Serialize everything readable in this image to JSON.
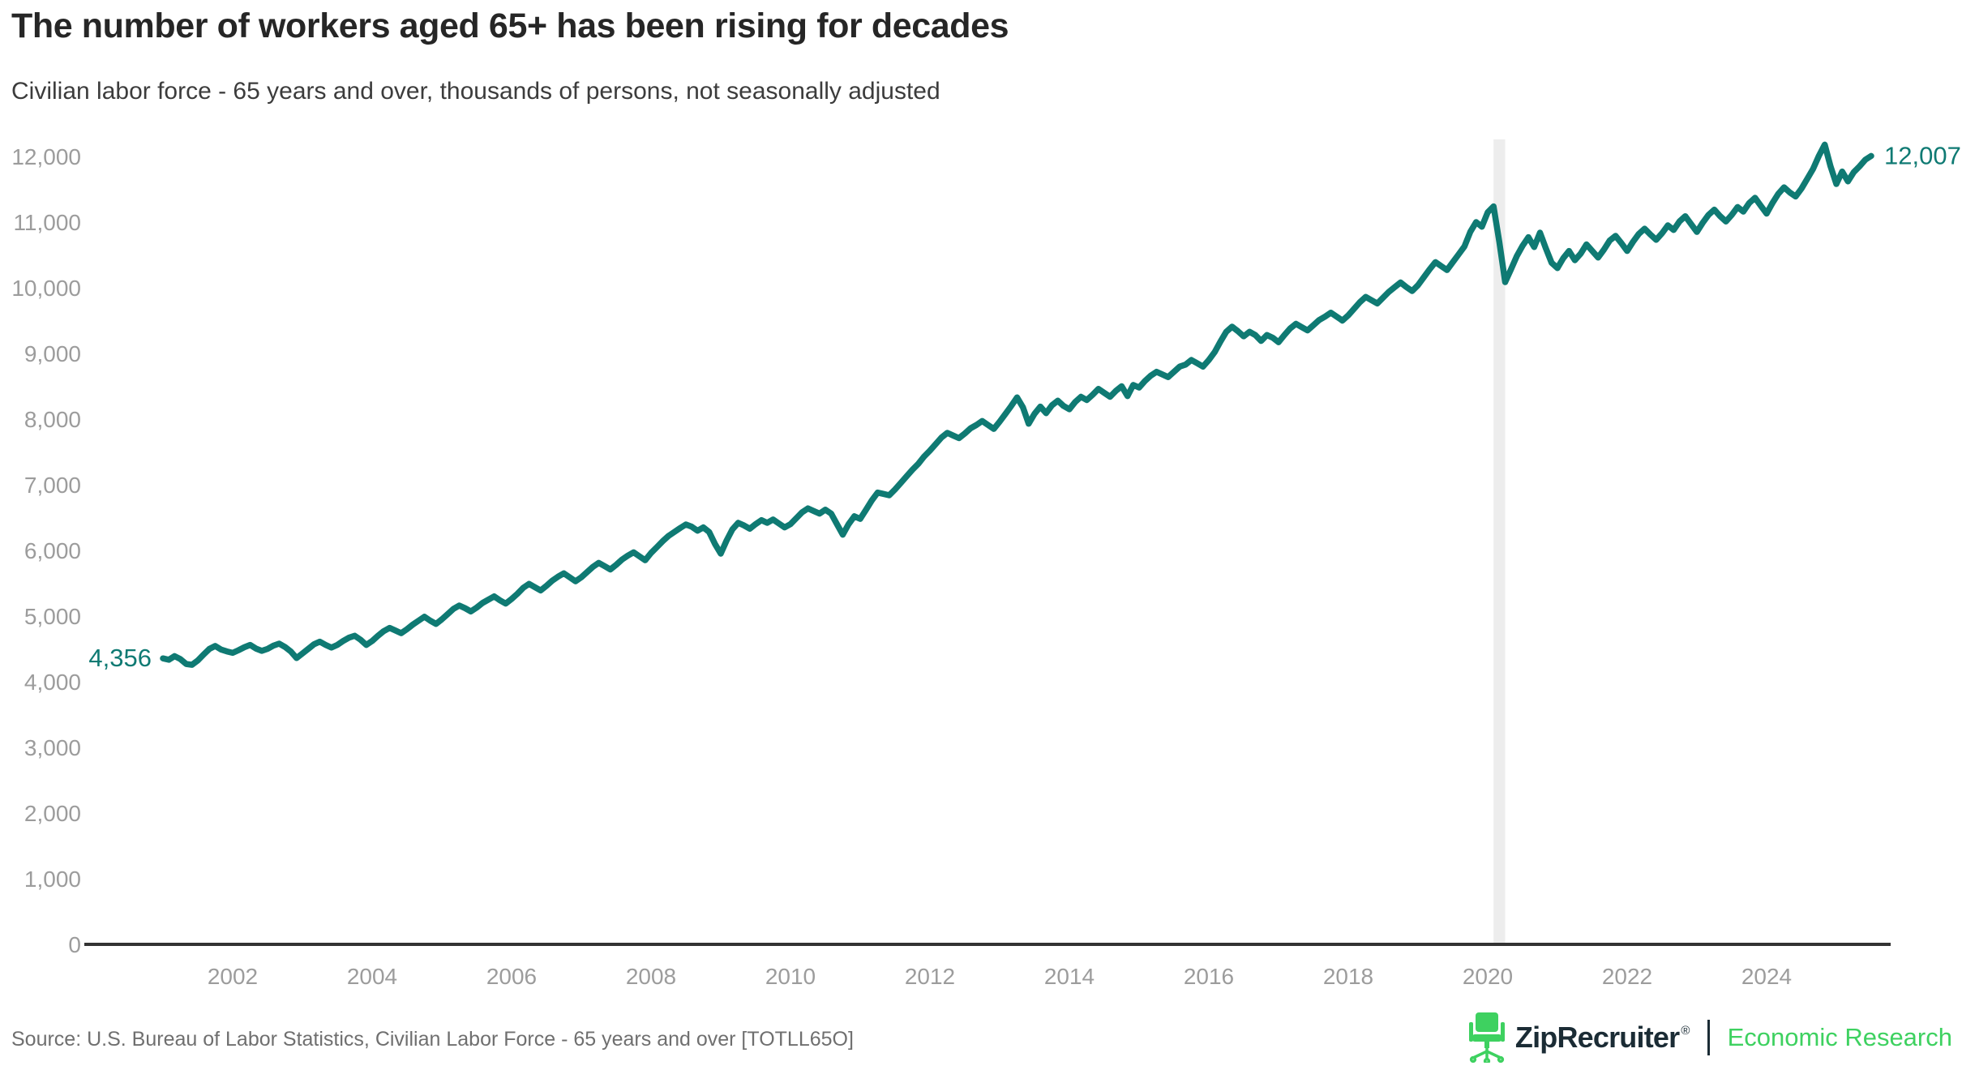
{
  "header": {
    "title": "The number of workers aged 65+ has been rising for decades",
    "subtitle": "Civilian labor force - 65 years and over, thousands of persons, not seasonally adjusted"
  },
  "footer": {
    "source": "Source: U.S. Bureau of Labor Statistics, Civilian Labor Force - 65 years and over [TOTLL65O]",
    "brand": "ZipRecruiter",
    "registered": "®",
    "division": "Economic Research",
    "chair_icon": "office-chair-icon"
  },
  "colors": {
    "line": "#0F7A73",
    "value_label": "#0F7A73",
    "axis_line": "#333333",
    "tick_text": "#9C9C9C",
    "recession_band": "#EDEDED",
    "brand_green": "#3ED160",
    "brand_dark": "#1B2C35"
  },
  "chart_data": {
    "type": "line",
    "title": "Civilian labor force - 65 years and over",
    "units": "thousands of persons, not seasonally adjusted",
    "x_start": "2001-01",
    "x_end": "2025-07",
    "ylim": [
      0,
      12000
    ],
    "grid": false,
    "legend": "none",
    "y_ticks": [
      0,
      1000,
      2000,
      3000,
      4000,
      5000,
      6000,
      7000,
      8000,
      9000,
      10000,
      11000,
      12000
    ],
    "x_ticks": [
      2002,
      2004,
      2006,
      2008,
      2010,
      2012,
      2014,
      2016,
      2018,
      2020,
      2022,
      2024
    ],
    "recession_band": {
      "from": "2020-02",
      "to": "2020-04"
    },
    "start_label": "4,356",
    "end_label": "12,007",
    "series": [
      {
        "name": "Civilian labor force 65 years and over (thousands)",
        "frequency": "monthly",
        "values": [
          4356,
          4335,
          4390,
          4345,
          4270,
          4258,
          4325,
          4415,
          4500,
          4545,
          4490,
          4462,
          4440,
          4480,
          4525,
          4560,
          4505,
          4470,
          4500,
          4550,
          4580,
          4530,
          4460,
          4360,
          4430,
          4500,
          4570,
          4610,
          4560,
          4520,
          4560,
          4620,
          4670,
          4700,
          4640,
          4560,
          4620,
          4700,
          4770,
          4820,
          4780,
          4740,
          4800,
          4870,
          4930,
          4990,
          4930,
          4880,
          4950,
          5030,
          5110,
          5160,
          5120,
          5070,
          5130,
          5200,
          5250,
          5300,
          5240,
          5190,
          5260,
          5340,
          5430,
          5490,
          5440,
          5390,
          5460,
          5540,
          5600,
          5650,
          5590,
          5530,
          5590,
          5670,
          5750,
          5810,
          5760,
          5710,
          5780,
          5860,
          5920,
          5970,
          5910,
          5850,
          5960,
          6050,
          6140,
          6220,
          6280,
          6340,
          6395,
          6360,
          6300,
          6350,
          6280,
          6100,
          5950,
          6150,
          6320,
          6420,
          6380,
          6330,
          6400,
          6460,
          6420,
          6470,
          6410,
          6350,
          6400,
          6490,
          6580,
          6640,
          6600,
          6560,
          6620,
          6560,
          6400,
          6240,
          6400,
          6520,
          6480,
          6620,
          6760,
          6880,
          6860,
          6840,
          6930,
          7030,
          7130,
          7230,
          7320,
          7430,
          7520,
          7620,
          7720,
          7790,
          7750,
          7710,
          7780,
          7860,
          7910,
          7970,
          7910,
          7850,
          7960,
          8080,
          8200,
          8330,
          8180,
          7930,
          8080,
          8190,
          8090,
          8210,
          8280,
          8200,
          8150,
          8260,
          8340,
          8290,
          8370,
          8460,
          8400,
          8340,
          8430,
          8500,
          8350,
          8520,
          8480,
          8580,
          8660,
          8720,
          8680,
          8640,
          8720,
          8800,
          8830,
          8900,
          8850,
          8800,
          8900,
          9020,
          9180,
          9330,
          9407,
          9340,
          9260,
          9330,
          9280,
          9190,
          9280,
          9240,
          9170,
          9280,
          9380,
          9450,
          9400,
          9350,
          9430,
          9510,
          9560,
          9620,
          9560,
          9500,
          9580,
          9680,
          9780,
          9860,
          9810,
          9760,
          9850,
          9940,
          10010,
          10080,
          10010,
          9950,
          10040,
          10160,
          10280,
          10390,
          10330,
          10270,
          10390,
          10510,
          10630,
          10850,
          11000,
          10930,
          11150,
          11240,
          10700,
          10086,
          10280,
          10480,
          10640,
          10770,
          10620,
          10840,
          10600,
          10380,
          10300,
          10450,
          10560,
          10420,
          10520,
          10660,
          10560,
          10460,
          10580,
          10720,
          10790,
          10680,
          10560,
          10700,
          10820,
          10900,
          10810,
          10730,
          10830,
          10950,
          10880,
          11010,
          11090,
          10970,
          10850,
          10990,
          11110,
          11190,
          11090,
          11010,
          11110,
          11230,
          11160,
          11290,
          11370,
          11250,
          11130,
          11290,
          11430,
          11530,
          11450,
          11390,
          11510,
          11660,
          11810,
          12010,
          12180,
          11850,
          11580,
          11770,
          11620,
          11760,
          11850,
          11950,
          12007
        ]
      }
    ]
  }
}
